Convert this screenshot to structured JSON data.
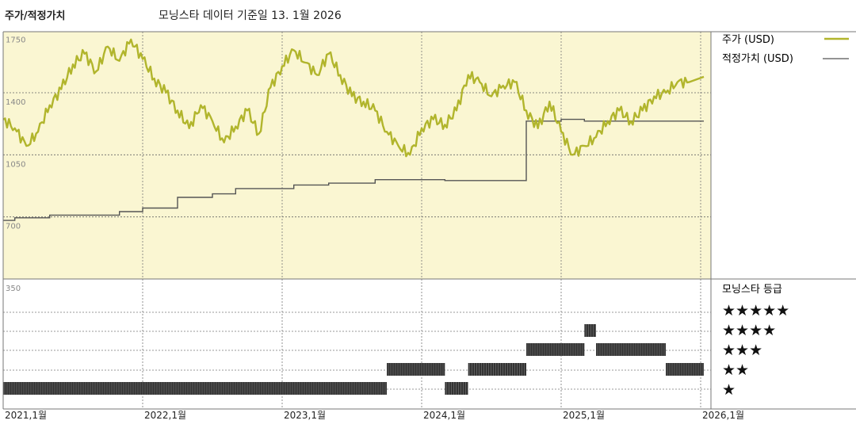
{
  "header": {
    "title": "주가/적정가치",
    "subtitle": "모닝스타 데이터 기준일 13. 1월 2026"
  },
  "legend": {
    "price_label": "주가 (USD)",
    "fair_label": "적정가치 (USD)",
    "rating_title": "모닝스타 등급"
  },
  "colors": {
    "price": "#b1b52c",
    "fair": "#555555",
    "panel_bg": "#faf6d2",
    "rating_bar": "#333333"
  },
  "chart_data": [
    {
      "type": "line",
      "title": "주가/적정가치",
      "x_range": [
        "2021-01",
        "2026-01"
      ],
      "y_ticks": [
        350,
        700,
        1050,
        1400,
        1750
      ],
      "ylim": [
        350,
        1800
      ],
      "x_tick_labels": [
        "2021,1월",
        "2022,1월",
        "2023,1월",
        "2024,1월",
        "2025,1월",
        "2026,1월"
      ],
      "series": [
        {
          "name": "주가 (USD)",
          "points": [
            [
              "2021-01",
              1250
            ],
            [
              "2021-02",
              1200
            ],
            [
              "2021-03",
              1100
            ],
            [
              "2021-04",
              1180
            ],
            [
              "2021-05",
              1330
            ],
            [
              "2021-06",
              1420
            ],
            [
              "2021-07",
              1560
            ],
            [
              "2021-08",
              1620
            ],
            [
              "2021-09",
              1520
            ],
            [
              "2021-10",
              1660
            ],
            [
              "2021-11",
              1580
            ],
            [
              "2021-12",
              1700
            ],
            [
              "2022-01",
              1590
            ],
            [
              "2022-02",
              1480
            ],
            [
              "2022-03",
              1400
            ],
            [
              "2022-04",
              1300
            ],
            [
              "2022-05",
              1200
            ],
            [
              "2022-06",
              1330
            ],
            [
              "2022-07",
              1240
            ],
            [
              "2022-08",
              1120
            ],
            [
              "2022-09",
              1210
            ],
            [
              "2022-10",
              1300
            ],
            [
              "2022-11",
              1170
            ],
            [
              "2022-12",
              1430
            ],
            [
              "2023-01",
              1550
            ],
            [
              "2023-02",
              1640
            ],
            [
              "2023-03",
              1570
            ],
            [
              "2023-04",
              1500
            ],
            [
              "2023-05",
              1620
            ],
            [
              "2023-06",
              1500
            ],
            [
              "2023-07",
              1380
            ],
            [
              "2023-08",
              1350
            ],
            [
              "2023-09",
              1300
            ],
            [
              "2023-10",
              1180
            ],
            [
              "2023-11",
              1100
            ],
            [
              "2023-12",
              1050
            ],
            [
              "2024-01",
              1200
            ],
            [
              "2024-02",
              1250
            ],
            [
              "2024-03",
              1220
            ],
            [
              "2024-04",
              1300
            ],
            [
              "2024-05",
              1500
            ],
            [
              "2024-06",
              1460
            ],
            [
              "2024-07",
              1380
            ],
            [
              "2024-08",
              1440
            ],
            [
              "2024-09",
              1460
            ],
            [
              "2024-10",
              1300
            ],
            [
              "2024-11",
              1200
            ],
            [
              "2024-12",
              1350
            ],
            [
              "2025-01",
              1180
            ],
            [
              "2025-02",
              1050
            ],
            [
              "2025-03",
              1100
            ],
            [
              "2025-04",
              1150
            ],
            [
              "2025-05",
              1240
            ],
            [
              "2025-06",
              1300
            ],
            [
              "2025-07",
              1240
            ],
            [
              "2025-08",
              1300
            ],
            [
              "2025-09",
              1380
            ],
            [
              "2025-10",
              1400
            ],
            [
              "2025-11",
              1460
            ],
            [
              "2025-12",
              1460
            ]
          ]
        },
        {
          "name": "적정가치 (USD)",
          "steps": [
            [
              "2021-01",
              680
            ],
            [
              "2021-02",
              695
            ],
            [
              "2021-05",
              710
            ],
            [
              "2021-11",
              730
            ],
            [
              "2022-01",
              750
            ],
            [
              "2022-04",
              810
            ],
            [
              "2022-07",
              830
            ],
            [
              "2022-09",
              860
            ],
            [
              "2023-02",
              880
            ],
            [
              "2023-05",
              890
            ],
            [
              "2023-09",
              910
            ],
            [
              "2024-03",
              905
            ],
            [
              "2024-10",
              1240
            ],
            [
              "2025-01",
              1250
            ],
            [
              "2025-03",
              1240
            ]
          ]
        }
      ]
    },
    {
      "type": "bar",
      "title": "모닝스타 등급",
      "levels": [
        "★★★★★",
        "★★★★",
        "★★★",
        "★★",
        "★"
      ],
      "rating_periods": [
        [
          "2021-01",
          "2023-10",
          1
        ],
        [
          "2023-10",
          "2024-03",
          2
        ],
        [
          "2024-03",
          "2024-05",
          1
        ],
        [
          "2024-05",
          "2024-10",
          2
        ],
        [
          "2024-10",
          "2025-03",
          3
        ],
        [
          "2025-03",
          "2025-04",
          4
        ],
        [
          "2025-04",
          "2025-10",
          3
        ],
        [
          "2025-10",
          "2026-01",
          2
        ]
      ]
    }
  ]
}
